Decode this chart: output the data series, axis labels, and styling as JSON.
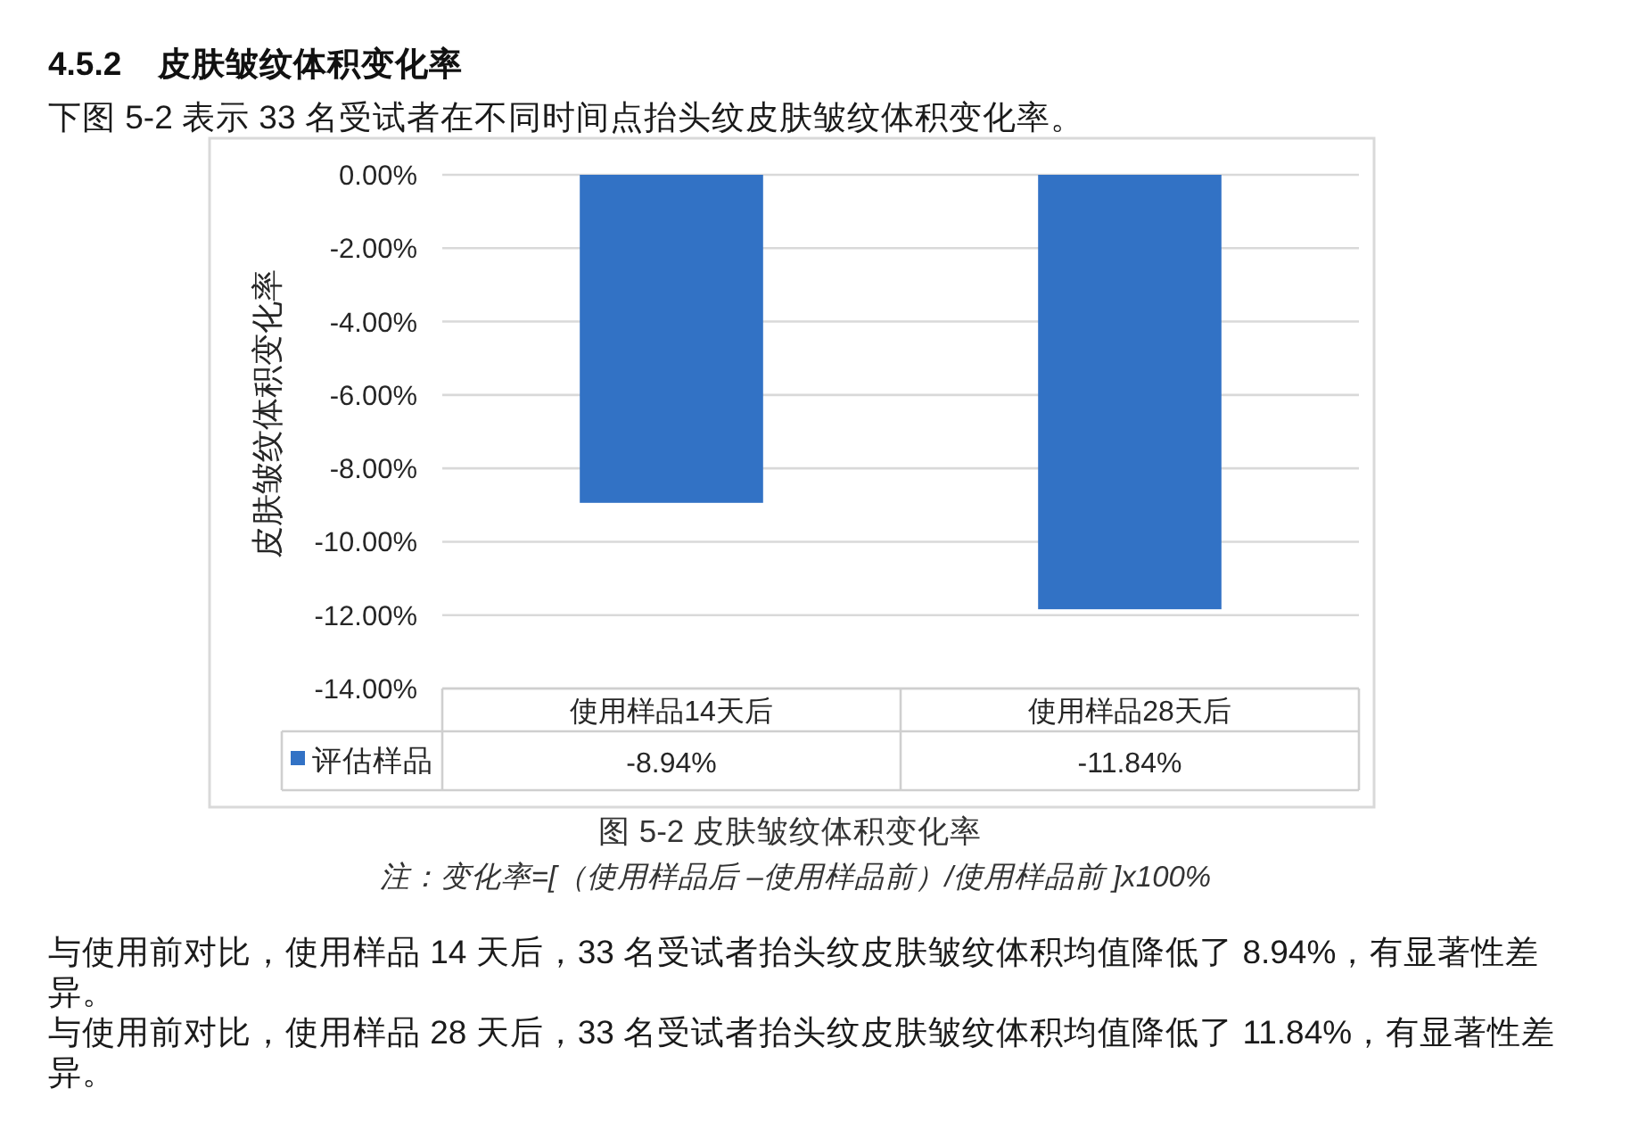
{
  "chart_data": {
    "type": "bar",
    "title": "4.5.2    皮肤皱纹体积变化率",
    "subtitle": "下图 5-2 表示 33 名受试者在不同时间点抬头纹皮肤皱纹体积变化率。",
    "ylabel": "皮肤皱纹体积变化率",
    "categories": [
      "使用样品14天后",
      "使用样品28天后"
    ],
    "series": [
      {
        "name": "评估样品",
        "color": "#3272c5",
        "values": [
          -8.94,
          -11.84
        ],
        "value_labels": [
          "-8.94%",
          "-11.84%"
        ]
      }
    ],
    "ylim": [
      -14,
      0
    ],
    "yticks": [
      {
        "value": 0,
        "label": "0.00%"
      },
      {
        "value": -2,
        "label": "-2.00%"
      },
      {
        "value": -4,
        "label": "-4.00%"
      },
      {
        "value": -6,
        "label": "-6.00%"
      },
      {
        "value": -8,
        "label": "-8.00%"
      },
      {
        "value": -10,
        "label": "-10.00%"
      },
      {
        "value": -12,
        "label": "-12.00%"
      },
      {
        "value": -14,
        "label": "-14.00%"
      }
    ],
    "grid": "y",
    "legend": "bottom",
    "annotations": [
      "图 5-2 皮肤皱纹体积变化率",
      "注：变化率=[（使用样品后 –使用样品前）/使用样品前 ]x100%",
      "与使用前对比，使用样品 14 天后，33 名受试者抬头纹皮肤皱纹体积均值降低了 8.94%，有显著性差异。",
      "与使用前对比，使用样品 28 天后，33 名受试者抬头纹皮肤皱纹体积均值降低了 11.84%，有显著性差异。"
    ]
  }
}
